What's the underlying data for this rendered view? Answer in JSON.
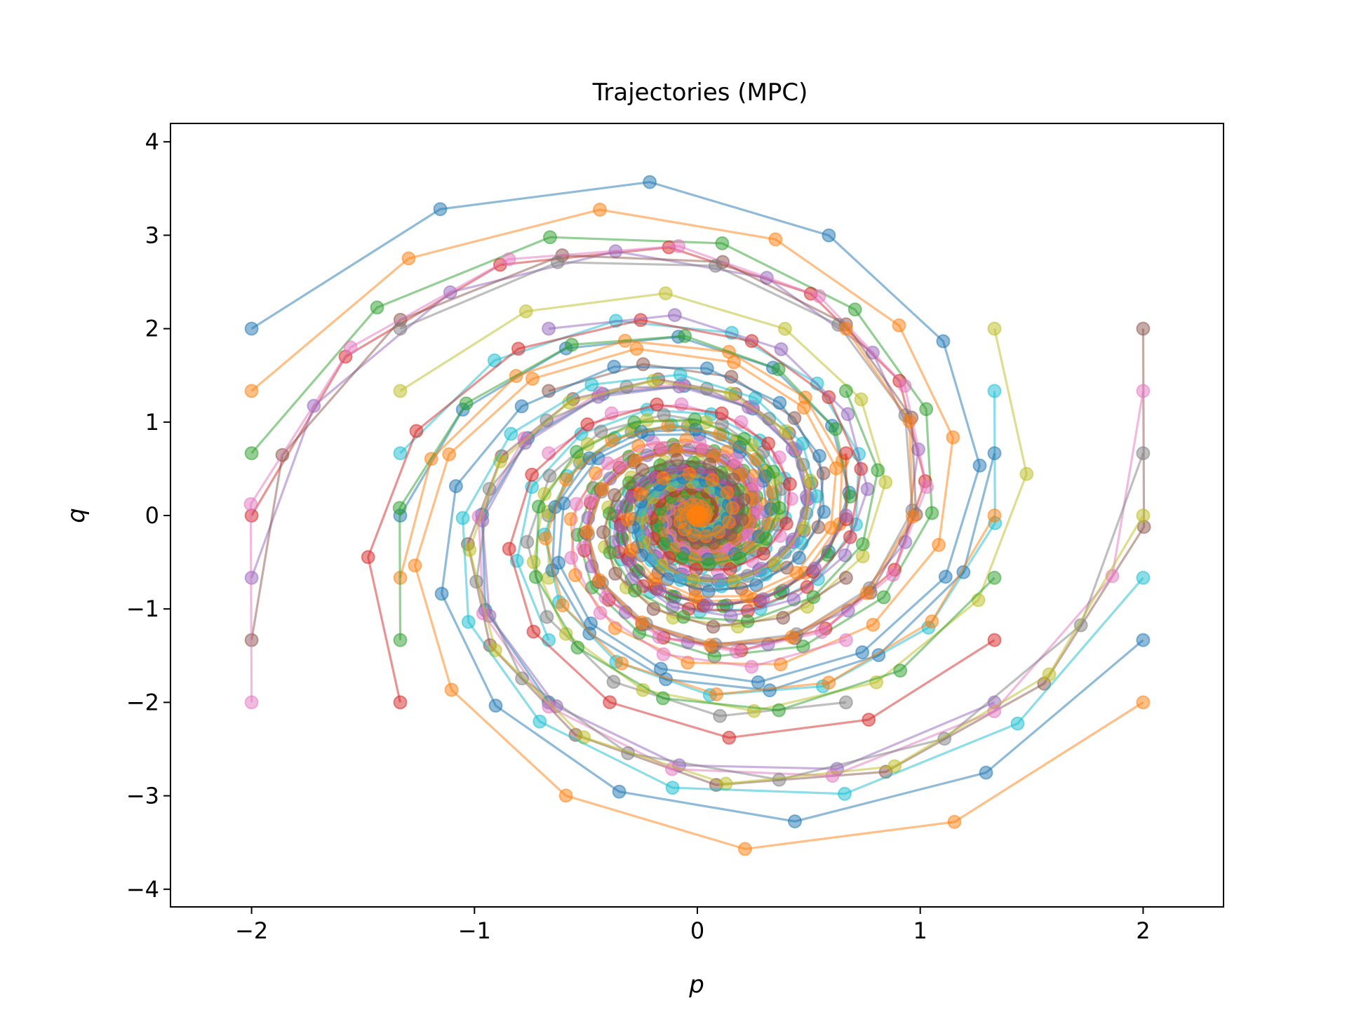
{
  "chart_data": {
    "type": "line",
    "title": "Trajectories (MPC)",
    "xlabel": "p",
    "ylabel": "q",
    "xlim": [
      -2.37,
      2.37
    ],
    "ylim": [
      -4.2,
      4.2
    ],
    "xticks": [
      -2,
      -1,
      0,
      1,
      2
    ],
    "yticks": [
      -4,
      -3,
      -2,
      -1,
      0,
      1,
      2,
      3,
      4
    ],
    "tick_labels_x": [
      "−2",
      "−1",
      "0",
      "1",
      "2"
    ],
    "tick_labels_y": [
      "−4",
      "−3",
      "−2",
      "−1",
      "0",
      "1",
      "2",
      "3",
      "4"
    ],
    "grid": false,
    "legend": "none",
    "markers": "circle",
    "dynamics_note": "spiral",
    "colors": [
      "#1f77b4",
      "#ff7f0e",
      "#2ca02c",
      "#d62728",
      "#9467bd",
      "#8c564b",
      "#e377c2",
      "#7f7f7f",
      "#bcbd22",
      "#17becf"
    ],
    "series": [
      {
        "start": [
          -2.0,
          2.0
        ]
      },
      {
        "start": [
          -2.0,
          1.333
        ]
      },
      {
        "start": [
          -2.0,
          0.667
        ]
      },
      {
        "start": [
          -2.0,
          0.0
        ]
      },
      {
        "start": [
          -2.0,
          -0.667
        ]
      },
      {
        "start": [
          -2.0,
          -1.333
        ]
      },
      {
        "start": [
          -2.0,
          -2.0
        ]
      },
      {
        "start": [
          -1.333,
          2.0
        ]
      },
      {
        "start": [
          -1.333,
          1.333
        ]
      },
      {
        "start": [
          -1.333,
          0.667
        ]
      },
      {
        "start": [
          -1.333,
          0.0
        ]
      },
      {
        "start": [
          -1.333,
          -0.667
        ]
      },
      {
        "start": [
          -1.333,
          -1.333
        ]
      },
      {
        "start": [
          -1.333,
          -2.0
        ]
      },
      {
        "start": [
          -0.667,
          2.0
        ]
      },
      {
        "start": [
          -0.667,
          1.333
        ]
      },
      {
        "start": [
          -0.667,
          0.667
        ]
      },
      {
        "start": [
          -0.667,
          0.0
        ]
      },
      {
        "start": [
          -0.667,
          -0.667
        ]
      },
      {
        "start": [
          -0.667,
          -1.333
        ]
      },
      {
        "start": [
          -0.667,
          -2.0
        ]
      },
      {
        "start": [
          0.667,
          2.0
        ]
      },
      {
        "start": [
          0.667,
          1.333
        ]
      },
      {
        "start": [
          0.667,
          0.667
        ]
      },
      {
        "start": [
          0.667,
          0.0
        ]
      },
      {
        "start": [
          0.667,
          -0.667
        ]
      },
      {
        "start": [
          0.667,
          -1.333
        ]
      },
      {
        "start": [
          0.667,
          -2.0
        ]
      },
      {
        "start": [
          1.333,
          2.0
        ]
      },
      {
        "start": [
          1.333,
          1.333
        ]
      },
      {
        "start": [
          1.333,
          0.667
        ]
      },
      {
        "start": [
          1.333,
          0.0
        ]
      },
      {
        "start": [
          1.333,
          -0.667
        ]
      },
      {
        "start": [
          1.333,
          -1.333
        ]
      },
      {
        "start": [
          1.333,
          -2.0
        ]
      },
      {
        "start": [
          2.0,
          2.0
        ]
      },
      {
        "start": [
          2.0,
          1.333
        ]
      },
      {
        "start": [
          2.0,
          0.667
        ]
      },
      {
        "start": [
          2.0,
          0.0
        ]
      },
      {
        "start": [
          2.0,
          -0.667
        ]
      },
      {
        "start": [
          2.0,
          -1.333
        ]
      },
      {
        "start": [
          2.0,
          -2.0
        ]
      }
    ]
  }
}
